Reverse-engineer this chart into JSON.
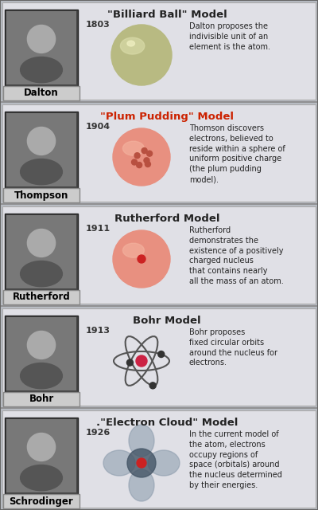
{
  "background_color": "#b8bcc4",
  "section_bg": "#e8e8ec",
  "sections": [
    {
      "title": "\"Billiard Ball\" Model",
      "year": "1803",
      "scientist": "Dalton",
      "description": "Dalton proposes the\nindivisible unit of an\nelement is the atom.",
      "model_type": "billiard_ball",
      "title_color": "#222222",
      "year_color": "#333333",
      "desc_color": "#222222"
    },
    {
      "title": "\"Plum Pudding\" Model",
      "year": "1904",
      "scientist": "Thompson",
      "description": "Thomson discovers\nelectrons, believed to\nreside within a sphere of\nuniform positive charge\n(the plum pudding\nmodel).",
      "model_type": "plum_pudding",
      "title_color": "#cc2200",
      "year_color": "#333333",
      "desc_color": "#222222"
    },
    {
      "title": "Rutherford Model",
      "year": "1911",
      "scientist": "Rutherford",
      "description": "Rutherford\ndemonstrates the\nexistence of a positively\ncharged nucleus\nthat contains nearly\nall the mass of an atom.",
      "model_type": "rutherford",
      "title_color": "#222222",
      "year_color": "#333333",
      "desc_color": "#222222"
    },
    {
      "title": "Bohr Model",
      "year": "1913",
      "scientist": "Bohr",
      "description": "Bohr proposes\nfixed circular orbits\naround the nucleus for\nelectrons.",
      "model_type": "bohr",
      "title_color": "#222222",
      "year_color": "#333333",
      "desc_color": "#222222"
    },
    {
      "title": ".\"Electron Cloud\" Model",
      "year": "1926",
      "scientist": "Schrodinger",
      "description": "In the current model of\nthe atom, electrons\noccupy regions of\nspace (orbitals) around\nthe nucleus determined\nby their energies.",
      "model_type": "electron_cloud",
      "title_color": "#222222",
      "year_color": "#333333",
      "desc_color": "#222222"
    }
  ]
}
